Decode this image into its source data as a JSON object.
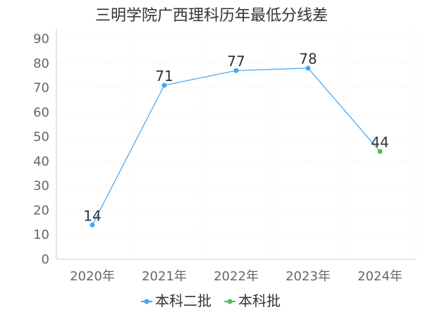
{
  "chart_data": {
    "type": "line",
    "title": "三明学院广西理科历年最低分线差",
    "xlabel": "",
    "ylabel": "",
    "categories": [
      "2020年",
      "2021年",
      "2022年",
      "2023年",
      "2024年"
    ],
    "ylim": [
      0,
      90
    ],
    "yticks": [
      0,
      10,
      20,
      30,
      40,
      50,
      60,
      70,
      80,
      90
    ],
    "grid": true,
    "legend_position": "bottom",
    "series": [
      {
        "name": "本科二批",
        "color": "#3fa7f5",
        "values": [
          14,
          71,
          77,
          78,
          null
        ]
      },
      {
        "name": "本科批",
        "color": "#4cbf5a",
        "values": [
          null,
          null,
          null,
          null,
          44
        ]
      }
    ],
    "data_labels": [
      "14",
      "71",
      "77",
      "78",
      "44"
    ]
  }
}
